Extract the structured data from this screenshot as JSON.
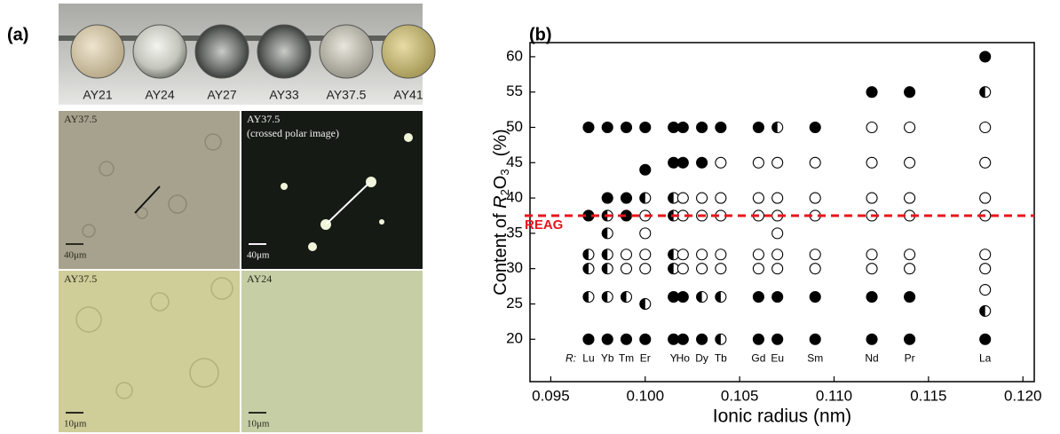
{
  "panel_labels": [
    "(a)",
    "(b)"
  ],
  "panel_a": {
    "samples": [
      "AY21",
      "AY24",
      "AY27",
      "AY33",
      "AY37.5",
      "AY41"
    ],
    "micrographs": [
      {
        "label": "AY37.5",
        "scale": "40μm"
      },
      {
        "label": "AY37.5",
        "note": "(crossed polar image)",
        "scale": "40μm"
      },
      {
        "label": "AY37.5",
        "scale": "10μm"
      },
      {
        "label": "AY24",
        "scale": "10μm"
      }
    ]
  },
  "chart_data": {
    "type": "scatter",
    "xlabel": "Ionic radius (nm)",
    "ylabel": [
      "Content of ",
      "R",
      "2",
      "O",
      "3",
      "(%)"
    ],
    "xlim": [
      0.0939,
      0.1206
    ],
    "ylim": [
      14,
      62
    ],
    "xticks": [
      0.095,
      {
        "value": 0.1,
        "label": "0.100"
      },
      0.105,
      {
        "value": 0.11,
        "label": "0.110"
      },
      0.115,
      {
        "value": 0.12,
        "label": "0.120"
      }
    ],
    "yticks": [
      20,
      25,
      30,
      35,
      40,
      45,
      50,
      55,
      60
    ],
    "element_labels": {
      "prefix": "R:",
      "names": [
        "Lu",
        "Yb",
        "Tm",
        "Er",
        "Y",
        "Ho",
        "Dy",
        "Tb",
        "Gd",
        "Eu",
        "Sm",
        "Nd",
        "Pr",
        "La"
      ],
      "x": [
        0.097,
        0.098,
        0.099,
        0.1,
        0.1015,
        0.102,
        0.103,
        0.104,
        0.106,
        0.107,
        0.109,
        0.112,
        0.114,
        0.118
      ]
    },
    "reference_line": {
      "value": 37.5,
      "label": "REAG",
      "color": "#e8141c"
    },
    "series": [
      {
        "fill": "full",
        "color": "#000000",
        "x": [
          0.097,
          0.097,
          0.097,
          0.098,
          0.098,
          0.098,
          0.099,
          0.099,
          0.099,
          0.099,
          0.1,
          0.1,
          0.1,
          0.1015,
          0.1015,
          0.1015,
          0.1015,
          0.102,
          0.102,
          0.102,
          0.102,
          0.103,
          0.103,
          0.103,
          0.104,
          0.106,
          0.106,
          0.106,
          0.107,
          0.107,
          0.109,
          0.109,
          0.109,
          0.112,
          0.112,
          0.112,
          0.114,
          0.114,
          0.114,
          0.118,
          0.118
        ],
        "values": [
          20,
          37.5,
          50,
          20,
          40,
          50,
          20,
          37.5,
          40,
          50,
          20,
          44,
          50,
          20,
          26,
          45,
          50,
          20,
          26,
          45,
          50,
          20,
          45,
          50,
          50,
          20,
          26,
          50,
          20,
          26,
          20,
          26,
          50,
          20,
          26,
          55,
          20,
          26,
          55,
          20,
          60
        ]
      },
      {
        "fill": "half",
        "color": "#000000",
        "x": [
          0.097,
          0.097,
          0.097,
          0.098,
          0.098,
          0.098,
          0.098,
          0.098,
          0.099,
          0.1,
          0.1,
          0.1015,
          0.1015,
          0.1015,
          0.1015,
          0.103,
          0.104,
          0.104,
          0.107,
          0.118,
          0.118
        ],
        "values": [
          26,
          30,
          32,
          26,
          30,
          32,
          35,
          37.5,
          26,
          25,
          40,
          30,
          32,
          37.5,
          40,
          26,
          20,
          26,
          50,
          24,
          55
        ]
      },
      {
        "fill": "none",
        "color": "#000000",
        "x": [
          0.099,
          0.099,
          0.1,
          0.1,
          0.1,
          0.1,
          0.102,
          0.102,
          0.102,
          0.102,
          0.103,
          0.103,
          0.103,
          0.103,
          0.104,
          0.104,
          0.104,
          0.104,
          0.104,
          0.106,
          0.106,
          0.106,
          0.106,
          0.106,
          0.107,
          0.107,
          0.107,
          0.107,
          0.107,
          0.107,
          0.109,
          0.109,
          0.109,
          0.109,
          0.109,
          0.112,
          0.112,
          0.112,
          0.112,
          0.112,
          0.112,
          0.114,
          0.114,
          0.114,
          0.114,
          0.114,
          0.114,
          0.118,
          0.118,
          0.118,
          0.118,
          0.118,
          0.118,
          0.118
        ],
        "values": [
          30,
          32,
          30,
          32,
          35,
          37.5,
          30,
          32,
          37.5,
          40,
          30,
          32,
          37.5,
          40,
          30,
          32,
          37.5,
          40,
          45,
          30,
          32,
          37.5,
          40,
          45,
          30,
          32,
          35,
          37.5,
          40,
          45,
          30,
          32,
          37.5,
          40,
          45,
          30,
          32,
          37.5,
          40,
          45,
          50,
          30,
          32,
          37.5,
          40,
          45,
          50,
          27,
          30,
          32,
          37.5,
          40,
          45,
          50
        ]
      }
    ]
  }
}
